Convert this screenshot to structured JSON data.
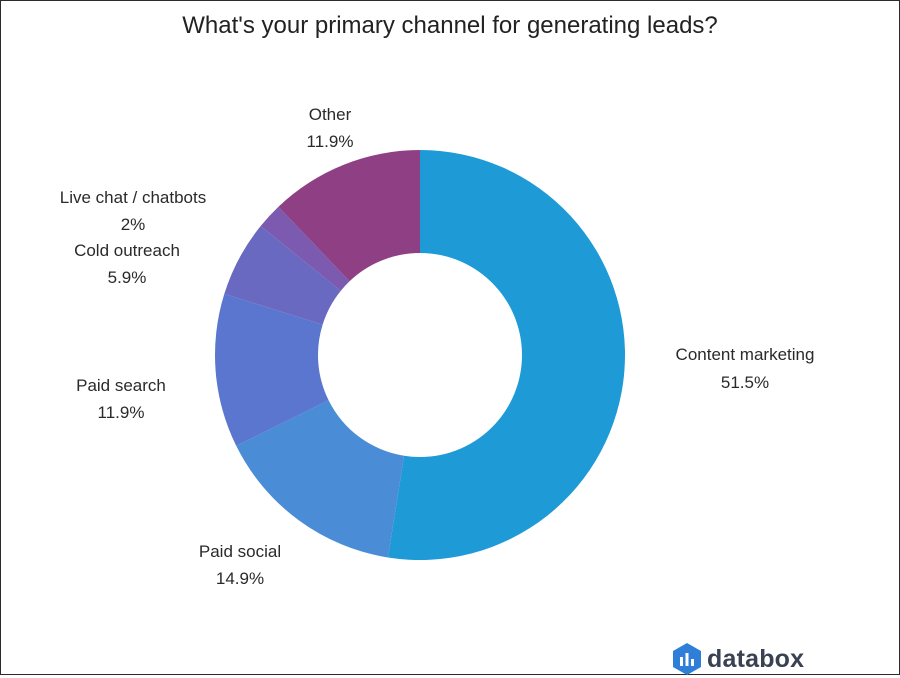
{
  "chart_data": {
    "type": "pie",
    "title": "What's your primary channel for generating leads?",
    "donut": true,
    "slices": [
      {
        "label": "Content marketing",
        "value": 51.5,
        "value_label": "51.5%",
        "color": "#1e9ad6"
      },
      {
        "label": "Paid social",
        "value": 14.9,
        "value_label": "14.9%",
        "color": "#4a8dd6"
      },
      {
        "label": "Paid search",
        "value": 11.9,
        "value_label": "11.9%",
        "color": "#5a76cf"
      },
      {
        "label": "Cold outreach",
        "value": 5.9,
        "value_label": "5.9%",
        "color": "#6a69c2"
      },
      {
        "label": "Live chat / chatbots",
        "value": 2,
        "value_label": "2%",
        "color": "#7c5ab0"
      },
      {
        "label": "Other",
        "value": 11.9,
        "value_label": "11.9%",
        "color": "#8f3f84"
      }
    ]
  },
  "brand": {
    "name": "databox",
    "icon": "databox-logo-icon"
  }
}
